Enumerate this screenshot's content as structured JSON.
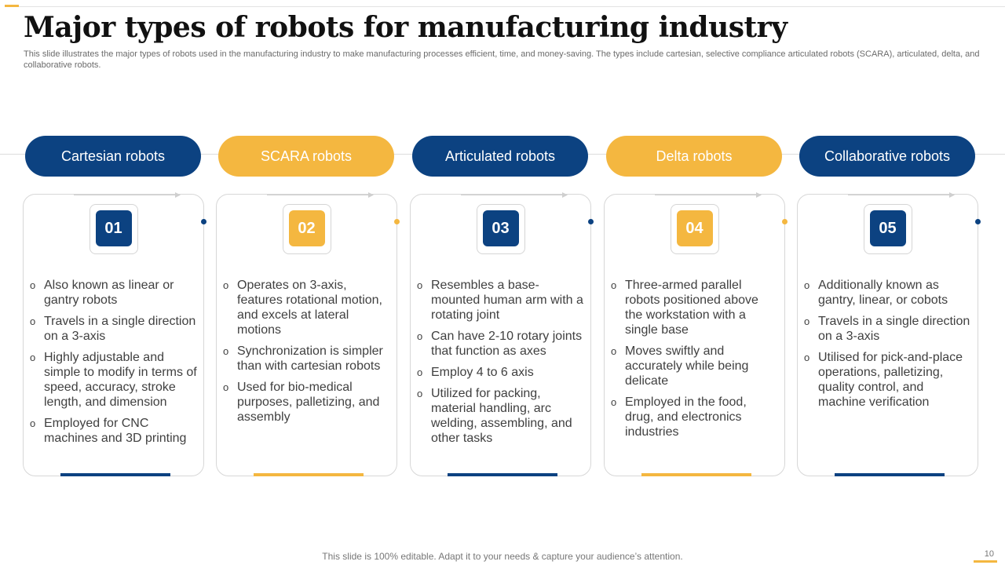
{
  "slide": {
    "title": "Major types of robots for manufacturing industry",
    "subtitle": "This slide illustrates the major types of robots used in the manufacturing industry to make manufacturing processes efficient, time, and money-saving. The types include cartesian, selective compliance articulated robots (SCARA), articulated, delta, and collaborative robots.",
    "footer": "This slide is 100% editable. Adapt it to your needs & capture your audience’s attention.",
    "page_number": "10"
  },
  "colors": {
    "blue": "#0C4281",
    "gold": "#F4B740"
  },
  "bullet_glyph": "o",
  "robots": [
    {
      "label": "Cartesian robots",
      "number": "01",
      "color": "blue",
      "points": [
        "Also known as linear or gantry robots",
        "Travels in a single direction on a 3-axis",
        "Highly adjustable and simple to modify in terms of speed, accuracy, stroke length, and dimension",
        "Employed for CNC machines and 3D printing"
      ]
    },
    {
      "label": "SCARA robots",
      "number": "02",
      "color": "gold",
      "points": [
        "Operates on 3-axis, features rotational motion, and excels at lateral motions",
        "Synchronization is simpler than with cartesian robots",
        "Used for bio-medical purposes, palletizing, and assembly"
      ]
    },
    {
      "label": "Articulated robots",
      "number": "03",
      "color": "blue",
      "points": [
        "Resembles a base-mounted human arm with a rotating joint",
        "Can have 2-10 rotary joints that function as axes",
        "Employ 4 to 6 axis",
        "Utilized for packing, material handling, arc welding, assembling, and other tasks"
      ]
    },
    {
      "label": "Delta robots",
      "number": "04",
      "color": "gold",
      "points": [
        "Three-armed parallel robots positioned above the workstation with a single base",
        "Moves swiftly and accurately while being delicate",
        "Employed in the food, drug, and electronics industries"
      ]
    },
    {
      "label": "Collaborative  robots",
      "number": "05",
      "color": "blue",
      "points": [
        "Additionally known as gantry, linear, or cobots",
        "Travels in a single direction on a 3-axis",
        "Utilised for pick-and-place operations, palletizing, quality control, and machine verification"
      ]
    }
  ]
}
